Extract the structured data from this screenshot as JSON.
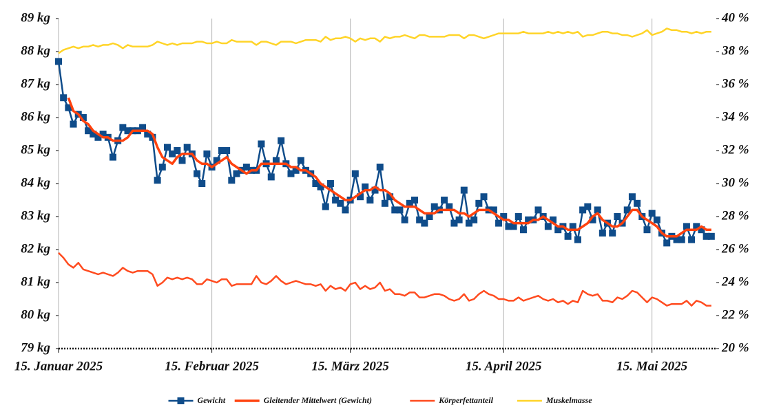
{
  "chart_data": {
    "type": "line",
    "x": [
      "2025-01-15",
      "2025-01-16",
      "2025-01-17",
      "2025-01-18",
      "2025-01-19",
      "2025-01-20",
      "2025-01-21",
      "2025-01-22",
      "2025-01-23",
      "2025-01-24",
      "2025-01-25",
      "2025-01-26",
      "2025-01-27",
      "2025-01-28",
      "2025-01-29",
      "2025-01-30",
      "2025-01-31",
      "2025-02-01",
      "2025-02-02",
      "2025-02-03",
      "2025-02-04",
      "2025-02-05",
      "2025-02-06",
      "2025-02-07",
      "2025-02-08",
      "2025-02-09",
      "2025-02-10",
      "2025-02-11",
      "2025-02-12",
      "2025-02-13",
      "2025-02-14",
      "2025-02-15",
      "2025-02-16",
      "2025-02-17",
      "2025-02-18",
      "2025-02-19",
      "2025-02-20",
      "2025-02-21",
      "2025-02-22",
      "2025-02-23",
      "2025-02-24",
      "2025-02-25",
      "2025-02-26",
      "2025-02-27",
      "2025-02-28",
      "2025-03-01",
      "2025-03-02",
      "2025-03-03",
      "2025-03-04",
      "2025-03-05",
      "2025-03-06",
      "2025-03-07",
      "2025-03-08",
      "2025-03-09",
      "2025-03-10",
      "2025-03-11",
      "2025-03-12",
      "2025-03-13",
      "2025-03-14",
      "2025-03-15",
      "2025-03-16",
      "2025-03-17",
      "2025-03-18",
      "2025-03-19",
      "2025-03-20",
      "2025-03-21",
      "2025-03-22",
      "2025-03-23",
      "2025-03-24",
      "2025-03-25",
      "2025-03-26",
      "2025-03-27",
      "2025-03-28",
      "2025-03-29",
      "2025-03-30",
      "2025-03-31",
      "2025-04-01",
      "2025-04-02",
      "2025-04-03",
      "2025-04-04",
      "2025-04-05",
      "2025-04-06",
      "2025-04-07",
      "2025-04-08",
      "2025-04-09",
      "2025-04-10",
      "2025-04-11",
      "2025-04-12",
      "2025-04-13",
      "2025-04-14",
      "2025-04-15",
      "2025-04-16",
      "2025-04-17",
      "2025-04-18",
      "2025-04-19",
      "2025-04-20",
      "2025-04-21",
      "2025-04-22",
      "2025-04-23",
      "2025-04-24",
      "2025-04-25",
      "2025-04-26",
      "2025-04-27",
      "2025-04-28",
      "2025-04-29",
      "2025-04-30",
      "2025-05-01",
      "2025-05-02",
      "2025-05-03",
      "2025-05-04",
      "2025-05-05",
      "2025-05-06",
      "2025-05-07",
      "2025-05-08",
      "2025-05-09",
      "2025-05-10",
      "2025-05-11",
      "2025-05-12",
      "2025-05-13",
      "2025-05-14",
      "2025-05-15",
      "2025-05-16",
      "2025-05-17",
      "2025-05-18",
      "2025-05-19",
      "2025-05-20",
      "2025-05-21",
      "2025-05-22",
      "2025-05-23",
      "2025-05-24",
      "2025-05-25",
      "2025-05-26",
      "2025-05-27"
    ],
    "xlim": [
      "2025-01-15",
      "2025-05-28"
    ],
    "xticks": [
      {
        "value": "2025-01-15",
        "label": "15. Januar 2025"
      },
      {
        "value": "2025-02-15",
        "label": "15. Februar 2025"
      },
      {
        "value": "2025-03-15",
        "label": "15. März 2025"
      },
      {
        "value": "2025-04-15",
        "label": "15. April 2025"
      },
      {
        "value": "2025-05-15",
        "label": "15. Mai 2025"
      }
    ],
    "ylim": [
      79,
      89
    ],
    "yticks": [
      {
        "value": 79,
        "label": "79 kg"
      },
      {
        "value": 80,
        "label": "80 kg"
      },
      {
        "value": 81,
        "label": "81 kg"
      },
      {
        "value": 82,
        "label": "82 kg"
      },
      {
        "value": 83,
        "label": "83 kg"
      },
      {
        "value": 84,
        "label": "84 kg"
      },
      {
        "value": 85,
        "label": "85 kg"
      },
      {
        "value": 86,
        "label": "86 kg"
      },
      {
        "value": 87,
        "label": "87 kg"
      },
      {
        "value": 88,
        "label": "88 kg"
      },
      {
        "value": 89,
        "label": "89 kg"
      }
    ],
    "y2lim": [
      20,
      40
    ],
    "y2ticks": [
      {
        "value": 20,
        "label": "20 %"
      },
      {
        "value": 22,
        "label": "22 %"
      },
      {
        "value": 24,
        "label": "24 %"
      },
      {
        "value": 26,
        "label": "26 %"
      },
      {
        "value": 28,
        "label": "28 %"
      },
      {
        "value": 30,
        "label": "30 %"
      },
      {
        "value": 32,
        "label": "32 %"
      },
      {
        "value": 34,
        "label": "34 %"
      },
      {
        "value": 36,
        "label": "36 %"
      },
      {
        "value": 38,
        "label": "38 %"
      },
      {
        "value": 40,
        "label": "40 %"
      }
    ],
    "grid": "x",
    "legend": "bottom",
    "series": [
      {
        "name": "Gewicht",
        "color": "#0f4c8a",
        "marker": "square",
        "values": [
          87.7,
          86.6,
          86.3,
          85.8,
          86.1,
          86.0,
          85.6,
          85.5,
          85.4,
          85.5,
          85.4,
          84.8,
          85.3,
          85.7,
          85.6,
          85.6,
          85.6,
          85.7,
          85.5,
          85.4,
          84.1,
          84.5,
          85.1,
          84.9,
          85.0,
          84.7,
          85.1,
          84.9,
          84.3,
          84.0,
          84.9,
          84.5,
          84.7,
          85.0,
          85.0,
          84.1,
          84.3,
          84.4,
          84.5,
          84.4,
          84.4,
          85.2,
          84.6,
          84.2,
          84.7,
          85.3,
          84.6,
          84.3,
          84.4,
          84.7,
          84.4,
          84.3,
          84.0,
          83.9,
          83.3,
          84.0,
          83.5,
          83.4,
          83.2,
          83.5,
          84.3,
          83.6,
          83.9,
          83.5,
          83.8,
          84.5,
          83.4,
          83.6,
          83.2,
          83.2,
          82.9,
          83.4,
          83.5,
          82.9,
          82.8,
          83.0,
          83.3,
          83.2,
          83.5,
          83.3,
          82.8,
          82.9,
          83.8,
          82.8,
          82.9,
          83.4,
          83.6,
          83.2,
          83.2,
          82.8,
          83.0,
          82.7,
          82.7,
          83.0,
          82.6,
          82.9,
          82.9,
          83.2,
          83.0,
          82.7,
          82.9,
          82.6,
          82.7,
          82.4,
          82.7,
          82.3,
          83.2,
          83.3,
          82.9,
          83.2,
          82.5,
          82.8,
          82.5,
          83.0,
          82.8,
          83.2,
          83.6,
          83.4,
          83.0,
          82.6,
          83.1,
          82.9,
          82.5,
          82.2,
          82.4,
          82.3,
          82.3,
          82.7,
          82.3,
          82.7,
          82.6,
          82.4,
          82.4
        ]
      },
      {
        "name": "Gleitender Mittelwert (Gewicht)",
        "color": "#ff420e",
        "width": 3.5,
        "values": [
          null,
          null,
          86.6,
          86.2,
          86.1,
          85.9,
          85.8,
          85.6,
          85.5,
          85.4,
          85.4,
          85.3,
          85.3,
          85.3,
          85.4,
          85.6,
          85.6,
          85.6,
          85.6,
          85.5,
          85.1,
          84.8,
          84.7,
          84.6,
          84.8,
          84.9,
          84.9,
          84.9,
          84.7,
          84.6,
          84.6,
          84.5,
          84.6,
          84.7,
          84.8,
          84.6,
          84.5,
          84.4,
          84.3,
          84.4,
          84.4,
          84.6,
          84.6,
          84.6,
          84.6,
          84.6,
          84.6,
          84.5,
          84.5,
          84.4,
          84.4,
          84.3,
          84.2,
          84.0,
          83.9,
          83.8,
          83.7,
          83.6,
          83.5,
          83.5,
          83.6,
          83.7,
          83.8,
          83.8,
          83.9,
          83.8,
          83.8,
          83.7,
          83.5,
          83.4,
          83.3,
          83.3,
          83.3,
          83.2,
          83.1,
          83.1,
          83.1,
          83.2,
          83.2,
          83.2,
          83.2,
          83.1,
          83.1,
          83.0,
          83.1,
          83.2,
          83.2,
          83.2,
          83.1,
          83.0,
          82.9,
          82.9,
          82.8,
          82.8,
          82.8,
          82.8,
          82.9,
          82.9,
          83.0,
          82.9,
          82.8,
          82.7,
          82.7,
          82.6,
          82.6,
          82.6,
          82.7,
          82.8,
          83.0,
          83.1,
          82.9,
          82.8,
          82.7,
          82.7,
          82.8,
          83.0,
          83.2,
          83.2,
          83.0,
          82.9,
          82.8,
          82.7,
          82.5,
          82.4,
          82.4,
          82.4,
          82.5,
          82.6,
          82.6,
          82.6,
          82.7,
          82.6,
          82.6
        ]
      },
      {
        "name": "Körperfettanteil",
        "color": "#ff4b1f",
        "width": 2.5,
        "axis": "y2",
        "values": [
          25.8,
          25.5,
          25.1,
          24.9,
          25.2,
          24.8,
          24.7,
          24.6,
          24.5,
          24.6,
          24.5,
          24.4,
          24.6,
          24.9,
          24.7,
          24.6,
          24.7,
          24.7,
          24.7,
          24.5,
          23.8,
          24.0,
          24.3,
          24.2,
          24.3,
          24.2,
          24.3,
          24.2,
          23.9,
          23.9,
          24.2,
          24.1,
          24.0,
          24.2,
          24.2,
          23.8,
          23.9,
          23.9,
          23.9,
          23.9,
          24.4,
          24.0,
          23.9,
          24.1,
          24.4,
          24.1,
          23.9,
          24.0,
          24.1,
          24.0,
          23.9,
          23.9,
          23.8,
          23.9,
          23.5,
          23.8,
          23.6,
          23.7,
          23.5,
          23.9,
          24.0,
          23.6,
          23.8,
          23.6,
          23.7,
          24.0,
          23.5,
          23.6,
          23.3,
          23.3,
          23.2,
          23.4,
          23.4,
          23.1,
          23.1,
          23.2,
          23.3,
          23.3,
          23.2,
          23.0,
          22.9,
          23.0,
          23.3,
          22.9,
          23.0,
          23.3,
          23.5,
          23.3,
          23.2,
          23.0,
          23.0,
          22.9,
          22.9,
          23.1,
          22.9,
          23.0,
          23.1,
          23.2,
          23.0,
          22.9,
          23.0,
          22.8,
          22.9,
          22.7,
          22.9,
          22.8,
          23.5,
          23.3,
          23.2,
          23.3,
          22.9,
          22.9,
          22.8,
          23.1,
          23.0,
          23.2,
          23.5,
          23.4,
          23.1,
          22.8,
          23.1,
          23.0,
          22.8,
          22.6,
          22.7,
          22.7,
          22.7,
          22.9,
          22.6,
          22.9,
          22.8,
          22.6,
          22.6
        ]
      },
      {
        "name": "Muskelmasse",
        "color": "#ffd428",
        "width": 2.5,
        "axis": "y2",
        "values": [
          37.9,
          38.1,
          38.2,
          38.3,
          38.2,
          38.3,
          38.3,
          38.4,
          38.3,
          38.4,
          38.4,
          38.5,
          38.4,
          38.2,
          38.4,
          38.3,
          38.3,
          38.3,
          38.3,
          38.4,
          38.6,
          38.5,
          38.4,
          38.5,
          38.4,
          38.5,
          38.5,
          38.5,
          38.6,
          38.6,
          38.5,
          38.5,
          38.6,
          38.5,
          38.5,
          38.7,
          38.6,
          38.6,
          38.6,
          38.6,
          38.4,
          38.6,
          38.6,
          38.5,
          38.4,
          38.6,
          38.6,
          38.6,
          38.5,
          38.6,
          38.7,
          38.7,
          38.7,
          38.6,
          38.9,
          38.7,
          38.8,
          38.8,
          38.9,
          38.8,
          38.6,
          38.8,
          38.7,
          38.8,
          38.8,
          38.6,
          38.9,
          38.8,
          38.9,
          38.9,
          39.0,
          38.9,
          38.8,
          39.0,
          39.0,
          38.9,
          38.9,
          38.9,
          38.9,
          39.0,
          39.0,
          39.0,
          38.8,
          39.0,
          39.0,
          38.9,
          38.8,
          38.9,
          39.0,
          39.1,
          39.1,
          39.1,
          39.1,
          39.1,
          39.2,
          39.1,
          39.1,
          39.1,
          39.1,
          39.2,
          39.1,
          39.2,
          39.1,
          39.2,
          39.1,
          39.2,
          38.9,
          39.0,
          39.0,
          39.1,
          39.2,
          39.2,
          39.1,
          39.1,
          39.0,
          39.0,
          38.9,
          39.0,
          39.1,
          39.3,
          39.0,
          39.1,
          39.2,
          39.4,
          39.3,
          39.3,
          39.2,
          39.2,
          39.1,
          39.2,
          39.1,
          39.2,
          39.2
        ]
      }
    ]
  }
}
